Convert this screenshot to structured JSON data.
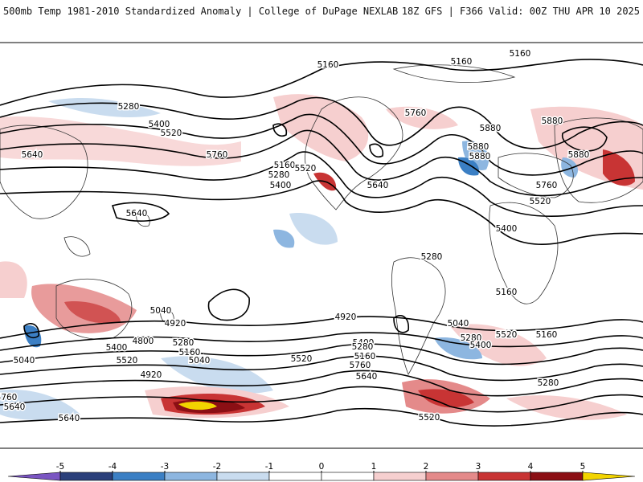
{
  "header": {
    "left_title": "500mb Temp 1981-2010 Standardized Anomaly | College of DuPage NEXLAB",
    "right_title": "18Z GFS | F366 Valid: 00Z THU APR 10 2025"
  },
  "map": {
    "projection": "cylindrical-equidistant",
    "background": "#ffffff",
    "coast_color": "#333333",
    "height_contour_color": "#000000",
    "height_contour_labels": [
      "5160",
      "5160",
      "5160",
      "5280",
      "5400",
      "5520",
      "5640",
      "5760",
      "5160",
      "5280",
      "5400",
      "5520",
      "5640",
      "5760",
      "5880",
      "5880",
      "5880",
      "5880",
      "5880",
      "5760",
      "5640",
      "5520",
      "5400",
      "5280",
      "5160",
      "5040",
      "4920",
      "4800",
      "5520",
      "5400",
      "5280",
      "5160",
      "5040",
      "4920",
      "5040",
      "5760",
      "5640",
      "5520",
      "5400",
      "5280",
      "5160",
      "5760",
      "5640",
      "4920",
      "5040",
      "5280",
      "5400",
      "5520",
      "5160",
      "5280",
      "5520",
      "5640"
    ]
  },
  "colorbar": {
    "ticks": [
      "-5",
      "-4",
      "-3",
      "-2",
      "-1",
      "0",
      "1",
      "2",
      "3",
      "4",
      "5"
    ],
    "colors": [
      "#7a55c2",
      "#2a3f7a",
      "#3b7fc4",
      "#8db6e0",
      "#c9dcef",
      "#ffffff",
      "#ffffff",
      "#f6cfcf",
      "#e48a8a",
      "#c83434",
      "#8b0f14",
      "#f2d400"
    ]
  }
}
